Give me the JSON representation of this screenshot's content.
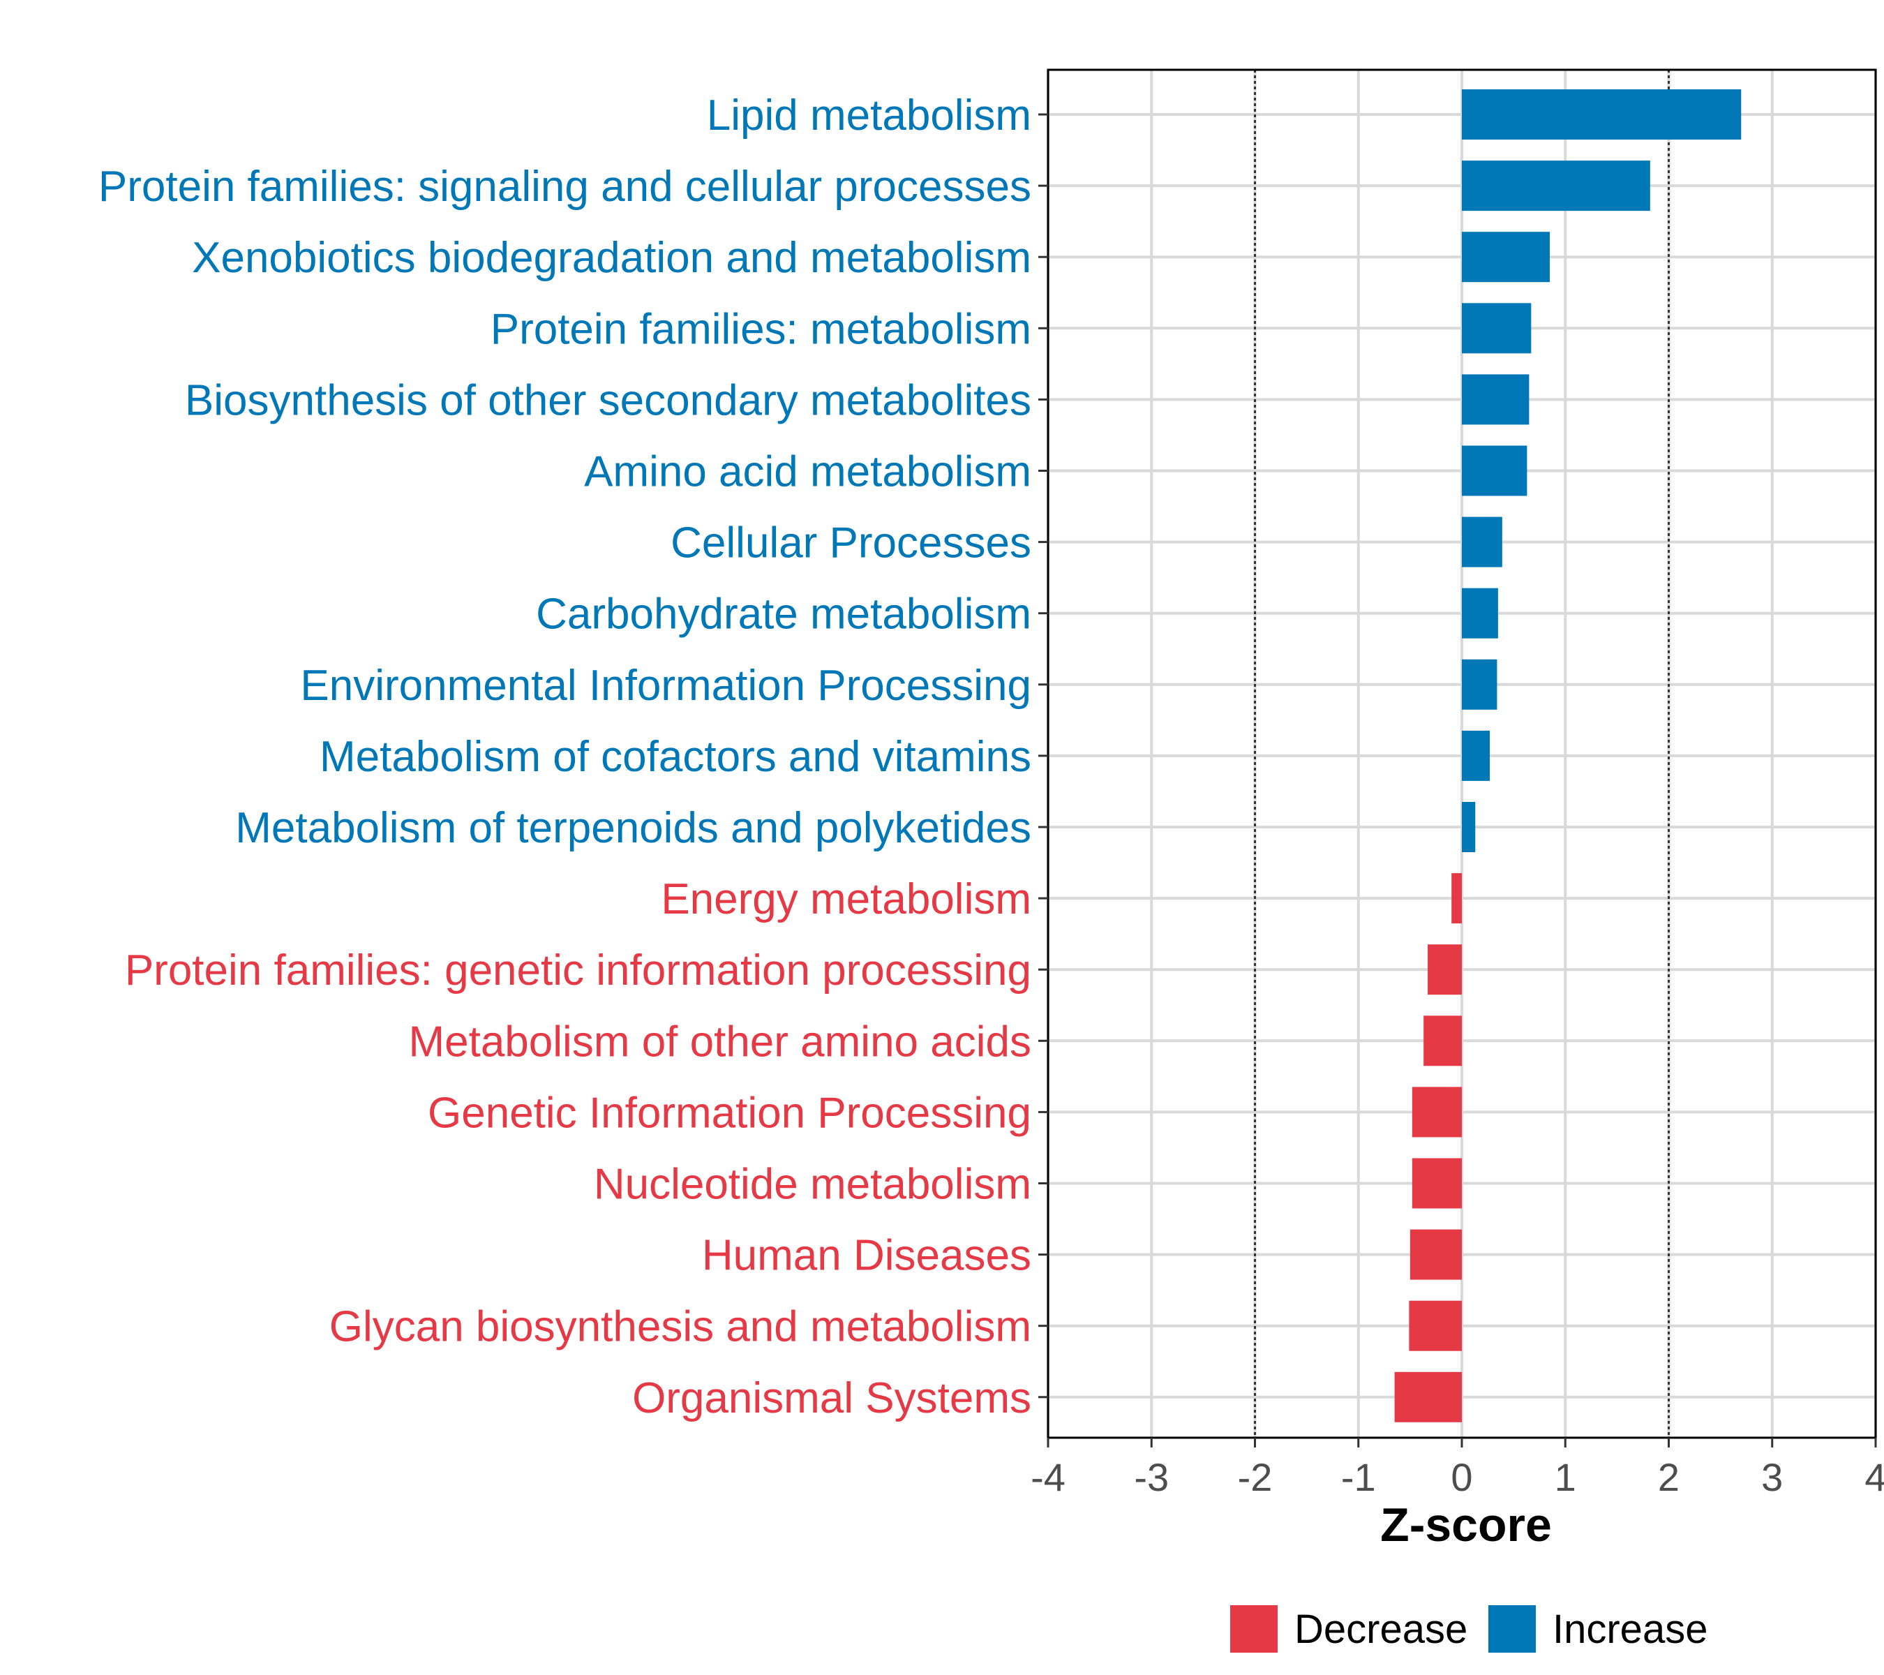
{
  "chart_data": {
    "type": "bar",
    "orientation": "horizontal",
    "title": "",
    "xlabel": "Z-score",
    "ylabel": "",
    "xlim": [
      -4,
      4
    ],
    "x_ticks": [
      -4,
      -3,
      -2,
      -1,
      0,
      1,
      2,
      3,
      4
    ],
    "threshold_lines": [
      -2,
      2
    ],
    "grid": true,
    "legend_position": "bottom",
    "colors": {
      "Decrease": "#E63946",
      "Increase": "#0077B6"
    },
    "legend": [
      {
        "name": "Decrease",
        "color": "#E63946"
      },
      {
        "name": "Increase",
        "color": "#0077B6"
      }
    ],
    "categories": [
      "Lipid metabolism",
      "Protein families: signaling and cellular processes",
      "Xenobiotics biodegradation and metabolism",
      "Protein families: metabolism",
      "Biosynthesis of other secondary metabolites",
      "Amino acid metabolism",
      "Cellular Processes",
      "Carbohydrate metabolism",
      "Environmental Information Processing",
      "Metabolism of cofactors and vitamins",
      "Metabolism of terpenoids and polyketides",
      "Energy metabolism",
      "Protein families: genetic information processing",
      "Metabolism of other amino acids",
      "Genetic Information Processing",
      "Nucleotide metabolism",
      "Human Diseases",
      "Glycan biosynthesis and metabolism",
      "Organismal Systems"
    ],
    "values": [
      2.7,
      1.82,
      0.85,
      0.67,
      0.65,
      0.63,
      0.39,
      0.35,
      0.34,
      0.27,
      0.13,
      -0.1,
      -0.33,
      -0.37,
      -0.48,
      -0.48,
      -0.5,
      -0.51,
      -0.65
    ],
    "groups": [
      "Increase",
      "Increase",
      "Increase",
      "Increase",
      "Increase",
      "Increase",
      "Increase",
      "Increase",
      "Increase",
      "Increase",
      "Increase",
      "Decrease",
      "Decrease",
      "Decrease",
      "Decrease",
      "Decrease",
      "Decrease",
      "Decrease",
      "Decrease"
    ]
  }
}
